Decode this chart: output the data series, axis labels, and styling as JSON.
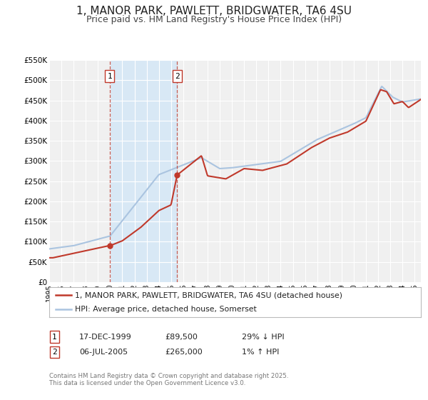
{
  "title": "1, MANOR PARK, PAWLETT, BRIDGWATER, TA6 4SU",
  "subtitle": "Price paid vs. HM Land Registry's House Price Index (HPI)",
  "title_fontsize": 11,
  "subtitle_fontsize": 9,
  "background_color": "#ffffff",
  "plot_bg_color": "#f0f0f0",
  "grid_color": "#ffffff",
  "hpi_color": "#aac4e0",
  "price_color": "#c0392b",
  "sale1_date_num": 1999.96,
  "sale1_price": 89500,
  "sale1_label": "1",
  "sale2_date_num": 2005.5,
  "sale2_price": 265000,
  "sale2_label": "2",
  "xmin": 1995,
  "xmax": 2025.5,
  "ymin": 0,
  "ymax": 550000,
  "yticks": [
    0,
    50000,
    100000,
    150000,
    200000,
    250000,
    300000,
    350000,
    400000,
    450000,
    500000,
    550000
  ],
  "ytick_labels": [
    "£0",
    "£50K",
    "£100K",
    "£150K",
    "£200K",
    "£250K",
    "£300K",
    "£350K",
    "£400K",
    "£450K",
    "£500K",
    "£550K"
  ],
  "xticks": [
    1995,
    1996,
    1997,
    1998,
    1999,
    2000,
    2001,
    2002,
    2003,
    2004,
    2005,
    2006,
    2007,
    2008,
    2009,
    2010,
    2011,
    2012,
    2013,
    2014,
    2015,
    2016,
    2017,
    2018,
    2019,
    2020,
    2021,
    2022,
    2023,
    2024,
    2025
  ],
  "legend_line1": "1, MANOR PARK, PAWLETT, BRIDGWATER, TA6 4SU (detached house)",
  "legend_line2": "HPI: Average price, detached house, Somerset",
  "table_row1": [
    "1",
    "17-DEC-1999",
    "£89,500",
    "29% ↓ HPI"
  ],
  "table_row2": [
    "2",
    "06-JUL-2005",
    "£265,000",
    "1% ↑ HPI"
  ],
  "footnote": "Contains HM Land Registry data © Crown copyright and database right 2025.\nThis data is licensed under the Open Government Licence v3.0.",
  "shade_x1": 1999.96,
  "shade_x2": 2005.5
}
